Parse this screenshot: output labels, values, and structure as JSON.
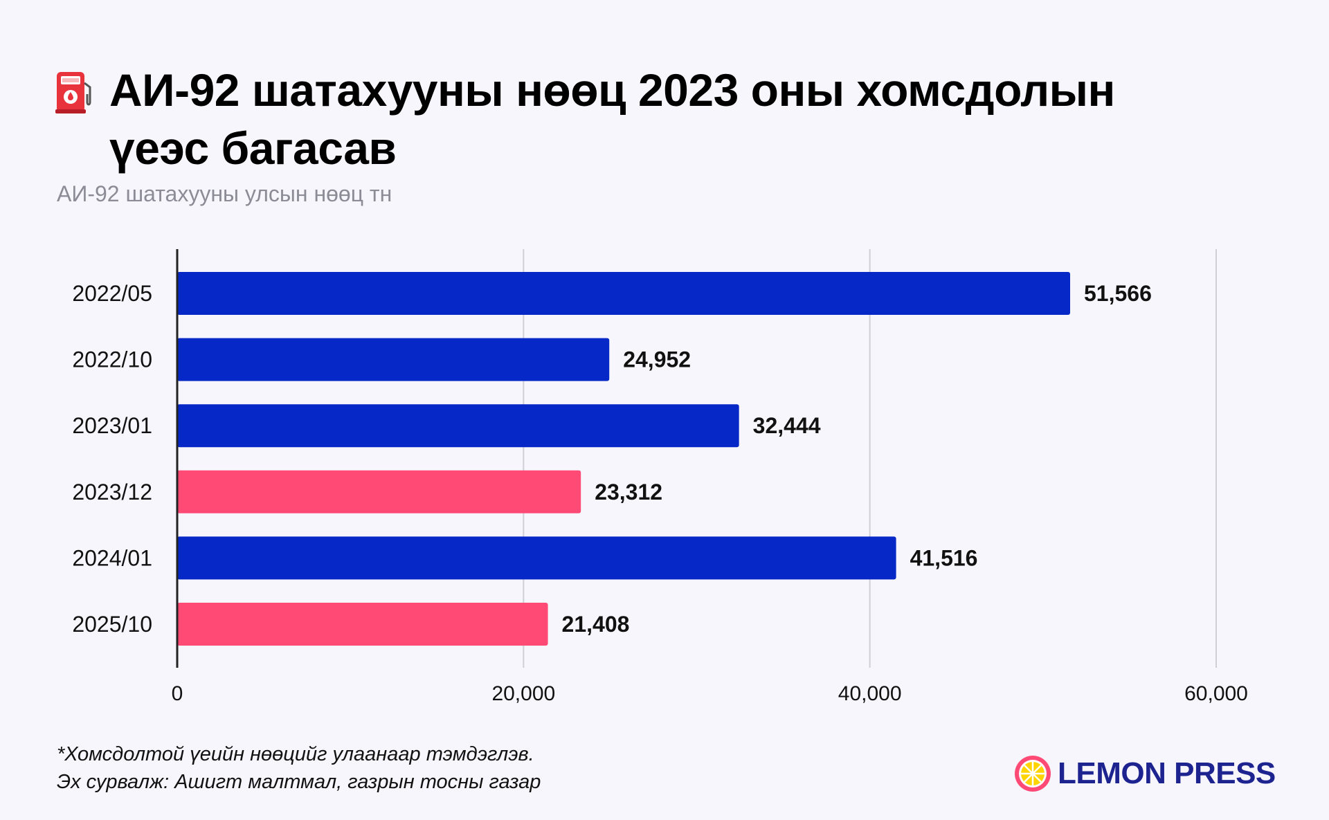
{
  "header": {
    "title": "АИ-92 шатахууны нөөц 2023 оны хомсдолын үеэс багасав",
    "subtitle": "АИ-92 шатахууны улсын нөөц тн",
    "icon": "fuel-pump-icon"
  },
  "chart_data": {
    "type": "bar",
    "orientation": "horizontal",
    "categories": [
      "2022/05",
      "2022/10",
      "2023/01",
      "2023/12",
      "2024/01",
      "2025/10"
    ],
    "values": [
      51566,
      24952,
      32444,
      23312,
      41516,
      21408
    ],
    "value_labels": [
      "51,566",
      "24,952",
      "32,444",
      "23,312",
      "41,516",
      "21,408"
    ],
    "highlight": [
      false,
      false,
      false,
      true,
      false,
      true
    ],
    "xlim": [
      0,
      60000
    ],
    "xticks": [
      0,
      20000,
      40000,
      60000
    ],
    "xtick_labels": [
      "0",
      "20,000",
      "40,000",
      "60,000"
    ],
    "grid": true,
    "colors": {
      "normal": "#0528c6",
      "shortage": "#ff4a76",
      "grid": "#cfcfd6",
      "axis": "#222222"
    }
  },
  "footer": {
    "note": "*Хомсдолтой үеийн нөөцийг улаанаар тэмдэглэв.",
    "source": "Эх сурвалж: Ашигт малтмал, газрын тосны газар",
    "brand": "LEMON PRESS",
    "brand_color": "#1d2490"
  }
}
